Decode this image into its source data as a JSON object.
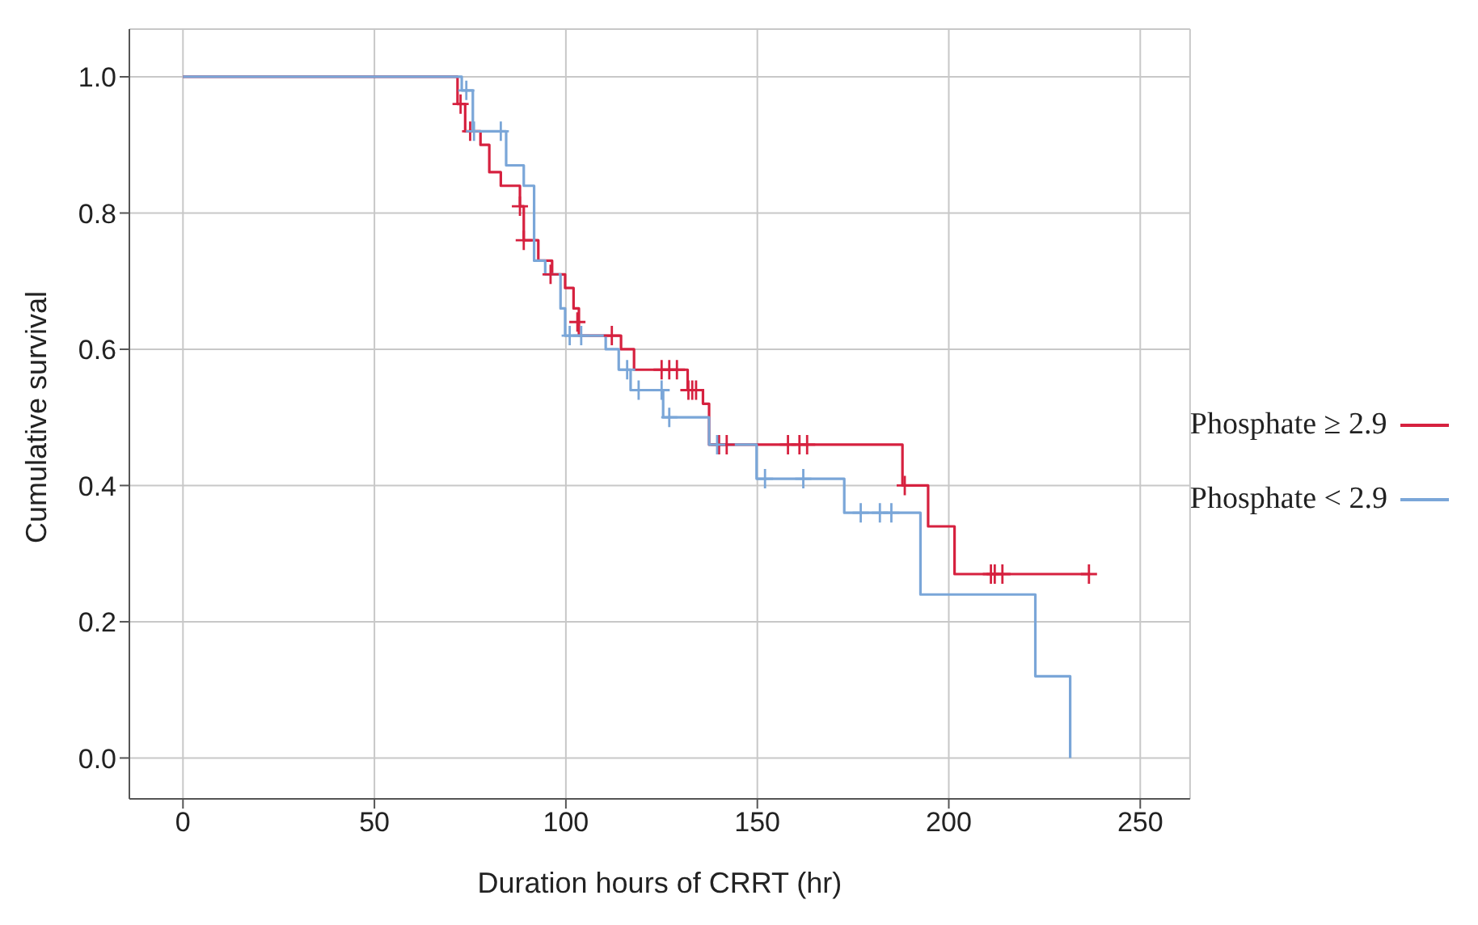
{
  "chart_data": {
    "type": "step",
    "xlabel": "Duration hours of CRRT (hr)",
    "ylabel": "Cumulative survival",
    "xlim": [
      -14,
      263
    ],
    "xticks": [
      0,
      50,
      100,
      150,
      200,
      250
    ],
    "ylim": [
      -0.06,
      1.07
    ],
    "yticks": [
      {
        "value": 0,
        "label": "0.0"
      },
      0.2,
      0.4,
      0.6,
      0.8,
      {
        "value": 1,
        "label": "1.0"
      }
    ],
    "grid": true,
    "legend": "right",
    "line_style": "solid",
    "series": [
      {
        "name": "Phosphate ≥ 2.9",
        "color": "#d6213f",
        "x": [
          0,
          71.7,
          73.7,
          77.7,
          80,
          83,
          88,
          89,
          92.8,
          96.4,
          99.8,
          102,
          103.4,
          114.4,
          117.8,
          131.8,
          135.8,
          137.4,
          187.9,
          194.6,
          201.5,
          236.6
        ],
        "values": [
          1,
          0.96,
          0.92,
          0.9,
          0.86,
          0.84,
          0.81,
          0.76,
          0.73,
          0.71,
          0.69,
          0.66,
          0.62,
          0.6,
          0.57,
          0.54,
          0.52,
          0.46,
          0.4,
          0.34,
          0.27,
          0.27
        ]
      },
      {
        "name": "Phosphate < 2.9",
        "color": "#7aa6d8",
        "x": [
          0,
          72.8,
          75.7,
          84.4,
          89,
          91.7,
          94.6,
          98.6,
          99.8,
          110.4,
          113.8,
          116.9,
          125.4,
          137.4,
          149.8,
          172.7,
          192.6,
          222.6,
          231.7
        ],
        "values": [
          1,
          0.98,
          0.92,
          0.87,
          0.84,
          0.73,
          0.71,
          0.66,
          0.62,
          0.6,
          0.57,
          0.54,
          0.5,
          0.46,
          0.41,
          0.36,
          0.24,
          0.12,
          0
        ]
      },
      {
        "type": "scatter",
        "marker": "cross",
        "color": "#d6213f",
        "x": [
          72.5,
          75,
          88,
          89,
          96,
          103,
          112,
          125,
          127,
          129,
          132,
          133,
          134,
          140,
          142,
          158,
          161,
          163,
          188.5,
          211,
          212,
          214,
          236.6
        ],
        "values": [
          0.96,
          0.92,
          0.81,
          0.76,
          0.71,
          0.64,
          0.62,
          0.57,
          0.57,
          0.57,
          0.54,
          0.54,
          0.54,
          0.46,
          0.46,
          0.46,
          0.46,
          0.46,
          0.4,
          0.27,
          0.27,
          0.27,
          0.27
        ]
      },
      {
        "type": "scatter",
        "marker": "cross",
        "color": "#7aa6d8",
        "x": [
          74,
          76,
          83,
          101,
          104,
          116,
          119,
          125,
          127,
          139.5,
          152,
          162,
          177,
          182,
          185
        ],
        "values": [
          0.98,
          0.92,
          0.92,
          0.62,
          0.62,
          0.57,
          0.54,
          0.54,
          0.5,
          0.46,
          0.41,
          0.41,
          0.36,
          0.36,
          0.36
        ]
      }
    ]
  }
}
